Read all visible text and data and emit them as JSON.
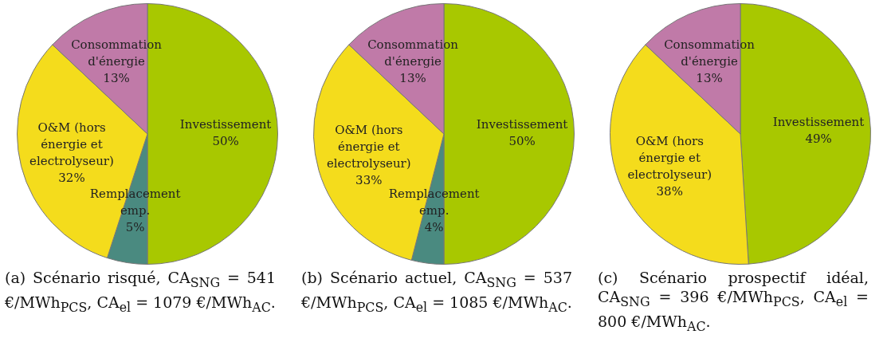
{
  "chart_data": [
    {
      "type": "pie",
      "title": "(a) Scénario risqué, CA$_{SNG}$ = 541 €/MWh$_{PCS}$, CA$_{el}$ = 1079 €/MWh$_{AC}$.",
      "categories": [
        "Investissement",
        "Remplacement emp.",
        "O&M (hors énergie et electrolyseur)",
        "Consommation d'énergie"
      ],
      "values": [
        50,
        5,
        32,
        13
      ],
      "value_labels": [
        "50%",
        "5%",
        "32%",
        "13%"
      ],
      "colors": [
        "#a8c800",
        "#4a8a80",
        "#f4dc1c",
        "#c07aa8"
      ],
      "legend": false
    },
    {
      "type": "pie",
      "title": "(b) Scénario actuel, CA$_{SNG}$ = 537 €/MWh$_{PCS}$, CA$_{el}$ = 1085 €/MWh$_{AC}$.",
      "categories": [
        "Investissement",
        "Remplacement emp.",
        "O&M (hors énergie et electrolyseur)",
        "Consommation d'énergie"
      ],
      "values": [
        50,
        4,
        33,
        13
      ],
      "value_labels": [
        "50%",
        "4%",
        "33%",
        "13%"
      ],
      "colors": [
        "#a8c800",
        "#4a8a80",
        "#f4dc1c",
        "#c07aa8"
      ],
      "legend": false
    },
    {
      "type": "pie",
      "title": "(c) Scénario prospectif idéal, CA$_{SNG}$ = 396 €/MWh$_{PCS}$, CA$_{el}$ = 800 €/MWh$_{AC}$.",
      "categories": [
        "Investissement",
        "O&M (hors énergie et electrolyseur)",
        "Consommation d'énergie"
      ],
      "values": [
        49,
        38,
        13
      ],
      "value_labels": [
        "49%",
        "38%",
        "13%"
      ],
      "colors": [
        "#a8c800",
        "#f4dc1c",
        "#c07aa8"
      ],
      "legend": false
    }
  ]
}
